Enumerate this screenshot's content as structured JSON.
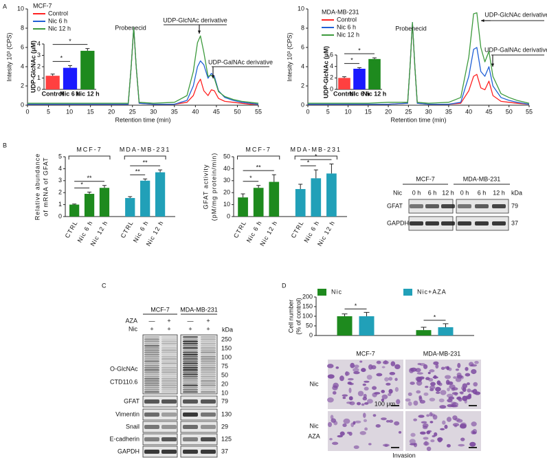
{
  "panel_labels": [
    "A",
    "B",
    "C",
    "D"
  ],
  "chart_data": [
    {
      "type": "line",
      "title": "MCF-7",
      "xlabel": "Retention time (min)",
      "ylabel": "Intesity 10³ (CPS)",
      "x": [
        0,
        5,
        10,
        15,
        20,
        24,
        24.7,
        25.3,
        25.9,
        26.6,
        30,
        35,
        38,
        39.5,
        40.5,
        41.2,
        42,
        43,
        43.8,
        44.5,
        45.5,
        47,
        49,
        51,
        53,
        55
      ],
      "series": [
        {
          "name": "Control",
          "color": "#ff2020",
          "values": [
            0.1,
            0.1,
            0.1,
            0.1,
            0.1,
            0.1,
            4,
            8,
            4,
            0.2,
            0.1,
            0.1,
            0.3,
            1,
            2.2,
            2.7,
            1.5,
            1,
            1.6,
            1.5,
            0.7,
            0.4,
            0.3,
            0.2,
            0.1,
            0.1
          ]
        },
        {
          "name": "Nic 6 h",
          "color": "#1f5fd6",
          "values": [
            0.1,
            0.1,
            0.1,
            0.1,
            0.1,
            0.1,
            4,
            8.1,
            4,
            0.2,
            0.1,
            0.1,
            0.5,
            2,
            4,
            4.6,
            4.2,
            2.8,
            3.3,
            3,
            1.5,
            0.8,
            0.5,
            0.3,
            0.2,
            0.1
          ]
        },
        {
          "name": "Nic 12 h",
          "color": "#3c9a3c",
          "values": [
            0.2,
            0.2,
            0.2,
            0.2,
            0.2,
            0.2,
            4,
            8.1,
            4,
            0.3,
            0.2,
            0.3,
            1,
            3.5,
            6.5,
            7.2,
            5.5,
            3,
            3.1,
            2.8,
            1.4,
            0.9,
            0.6,
            0.4,
            0.3,
            0.2
          ]
        }
      ],
      "xlim": [
        0,
        55
      ],
      "xticks": [
        0,
        5,
        10,
        15,
        20,
        25,
        30,
        35,
        40,
        45,
        50,
        55
      ],
      "ylim": [
        0,
        10
      ],
      "yticks": [
        0,
        2,
        4,
        6,
        8,
        10
      ],
      "annotations": [
        "Probenecid",
        "UDP-GlcNAc derivative",
        "UDP-GalNAc derivative"
      ],
      "inset": {
        "type": "bar",
        "ylabel": "UDP-GlcNAc (μM)",
        "categories": [
          "Control",
          "Nic 6 h",
          "Nic 12 h"
        ],
        "values": [
          1.2,
          1.9,
          3.4
        ],
        "errors": [
          0.15,
          0.2,
          0.2
        ],
        "colors": [
          "#ff4040",
          "#1a1aff",
          "#1e8a1e"
        ],
        "ylim": [
          0,
          4
        ],
        "yticks": [
          0,
          1,
          2,
          3,
          4
        ],
        "significance": [
          "*",
          "*"
        ]
      }
    },
    {
      "type": "line",
      "title": "MDA-MB-231",
      "xlabel": "Retention time (min)",
      "ylabel": "Intesity 10³ (CPS)",
      "x": [
        0,
        5,
        10,
        15,
        20,
        24.8,
        25.4,
        26,
        26.6,
        27.2,
        30,
        35,
        38,
        40,
        41.2,
        42,
        43,
        44,
        45,
        46,
        48,
        50,
        52,
        55
      ],
      "series": [
        {
          "name": "Control",
          "color": "#ff2020",
          "values": [
            0.1,
            0.1,
            0.1,
            0.1,
            0.1,
            0.2,
            4,
            8.5,
            4,
            0.2,
            0.1,
            0.1,
            0.2,
            1.5,
            3,
            3.2,
            1.8,
            1.6,
            2.5,
            1,
            0.4,
            0.3,
            0.2,
            0.1
          ]
        },
        {
          "name": "Nic 6 h",
          "color": "#1f5fd6",
          "values": [
            0.1,
            0.1,
            0.1,
            0.1,
            0.1,
            0.2,
            4,
            8.6,
            4,
            0.2,
            0.1,
            0.1,
            0.3,
            3,
            5.8,
            6,
            3.5,
            3,
            4,
            2,
            0.8,
            0.5,
            0.3,
            0.1
          ]
        },
        {
          "name": "Nic 12 h",
          "color": "#3c9a3c",
          "values": [
            0.2,
            0.2,
            0.2,
            0.2,
            0.3,
            0.3,
            4,
            8.6,
            4,
            0.3,
            0.2,
            0.3,
            0.8,
            5,
            9.5,
            9.6,
            6,
            4.5,
            5.6,
            3,
            1.2,
            0.8,
            0.5,
            0.2
          ]
        }
      ],
      "xlim": [
        0,
        55
      ],
      "xticks": [
        0,
        5,
        10,
        15,
        20,
        25,
        30,
        35,
        40,
        45,
        50,
        55
      ],
      "ylim": [
        0,
        10
      ],
      "yticks": [
        0,
        2,
        4,
        6,
        8,
        10
      ],
      "annotations": [
        "Probenecid",
        "UDP-GlcNAc derivative",
        "UDP-GalNAc derivative"
      ],
      "inset": {
        "type": "bar",
        "ylabel": "UDP-GlcNAc (μM)",
        "categories": [
          "Control",
          "Nic 6 h",
          "Nic 12 h"
        ],
        "values": [
          2.0,
          3.6,
          5.3
        ],
        "errors": [
          0.2,
          0.2,
          0.2
        ],
        "colors": [
          "#ff4040",
          "#1a1aff",
          "#1e8a1e"
        ],
        "ylim": [
          0,
          6
        ],
        "yticks": [
          0,
          2,
          4,
          6
        ],
        "significance": [
          "*",
          "*"
        ]
      }
    },
    {
      "type": "bar",
      "ylabel": [
        "Relative abundance",
        "of mRNA of GFAT"
      ],
      "groups": [
        "MCF-7",
        "MDA-MB-231"
      ],
      "categories": [
        "CTRL",
        "Nic 6 h",
        "Nic 12 h",
        "CTRL",
        "Nic 6 h",
        "Nic 12 h"
      ],
      "values": [
        1.0,
        1.9,
        2.4,
        1.55,
        3.0,
        3.7
      ],
      "errors": [
        0.05,
        0.15,
        0.2,
        0.12,
        0.15,
        0.2
      ],
      "colors": [
        "#1e8a1e",
        "#21a0b8"
      ],
      "ylim": [
        0,
        5
      ],
      "yticks": [
        0,
        1,
        2,
        3,
        4,
        5
      ],
      "significance": [
        "*",
        "**",
        "**",
        "**"
      ]
    },
    {
      "type": "bar",
      "ylabel": [
        "GFAT activity",
        "(pM/mg protein/min)"
      ],
      "groups": [
        "MCF-7",
        "MDA-MB-231"
      ],
      "categories": [
        "CTRL",
        "Nic 6 h",
        "Nic 12 h",
        "CTRL",
        "Nic 6 h",
        "Nic 12 h"
      ],
      "values": [
        16,
        24,
        29,
        23,
        32,
        36
      ],
      "errors": [
        3,
        2,
        6,
        4,
        7,
        8
      ],
      "colors": [
        "#1e8a1e",
        "#21a0b8"
      ],
      "ylim": [
        0,
        50
      ],
      "yticks": [
        0,
        10,
        20,
        30,
        40,
        50
      ],
      "significance": [
        "*",
        "**",
        "*",
        "*"
      ]
    },
    {
      "type": "grouped",
      "ylabel": [
        "Cell number",
        "(% of control)"
      ],
      "categories": [
        "MCF-7",
        "MDA-MB-231"
      ],
      "series": [
        {
          "name": "Nic",
          "color": "#1e8a1e",
          "values": [
            100,
            28
          ],
          "errors": [
            12,
            15
          ]
        },
        {
          "name": "Nic+AZA",
          "color": "#21a0b8",
          "values": [
            100,
            43
          ],
          "errors": [
            20,
            18
          ]
        }
      ],
      "ylim": [
        0,
        200
      ],
      "yticks": [
        0,
        50,
        100,
        150,
        200
      ],
      "significance": [
        "*",
        "*"
      ]
    }
  ],
  "blot_b": {
    "groups": [
      "MCF-7",
      "MDA-MB-231"
    ],
    "treatment": "Nic",
    "lanes": [
      "0 h",
      "6 h",
      "12 h",
      "0 h",
      "6 h",
      "12 h"
    ],
    "kda_label": "kDa",
    "rows": [
      {
        "name": "GFAT",
        "kda": 79
      },
      {
        "name": "GAPDH",
        "kda": 37
      }
    ]
  },
  "blot_c": {
    "groups": [
      "MCF-7",
      "MDA-MB-231"
    ],
    "kda_label": "kDa",
    "treatments": [
      {
        "name": "AZA",
        "marks": [
          "—",
          "+",
          "—",
          "+"
        ]
      },
      {
        "name": "Nic",
        "marks": [
          "+",
          "+",
          "+",
          "+"
        ]
      }
    ],
    "main": {
      "name": [
        "O-GlcNAc",
        "CTD110.6"
      ],
      "markers": [
        250,
        150,
        100,
        75,
        50,
        20,
        10
      ]
    },
    "rows": [
      {
        "name": "GFAT",
        "kda": 79
      },
      {
        "name": "Vimentin",
        "kda": 130
      },
      {
        "name": "Snail",
        "kda": 29
      },
      {
        "name": "E-cadherin",
        "kda": 125
      },
      {
        "name": "GAPDH",
        "kda": 37
      }
    ]
  },
  "micrographs": {
    "rows": [
      [
        "Nic"
      ],
      [
        "Nic",
        "AZA"
      ]
    ],
    "scale": "100 μm",
    "caption": "Invasion"
  }
}
